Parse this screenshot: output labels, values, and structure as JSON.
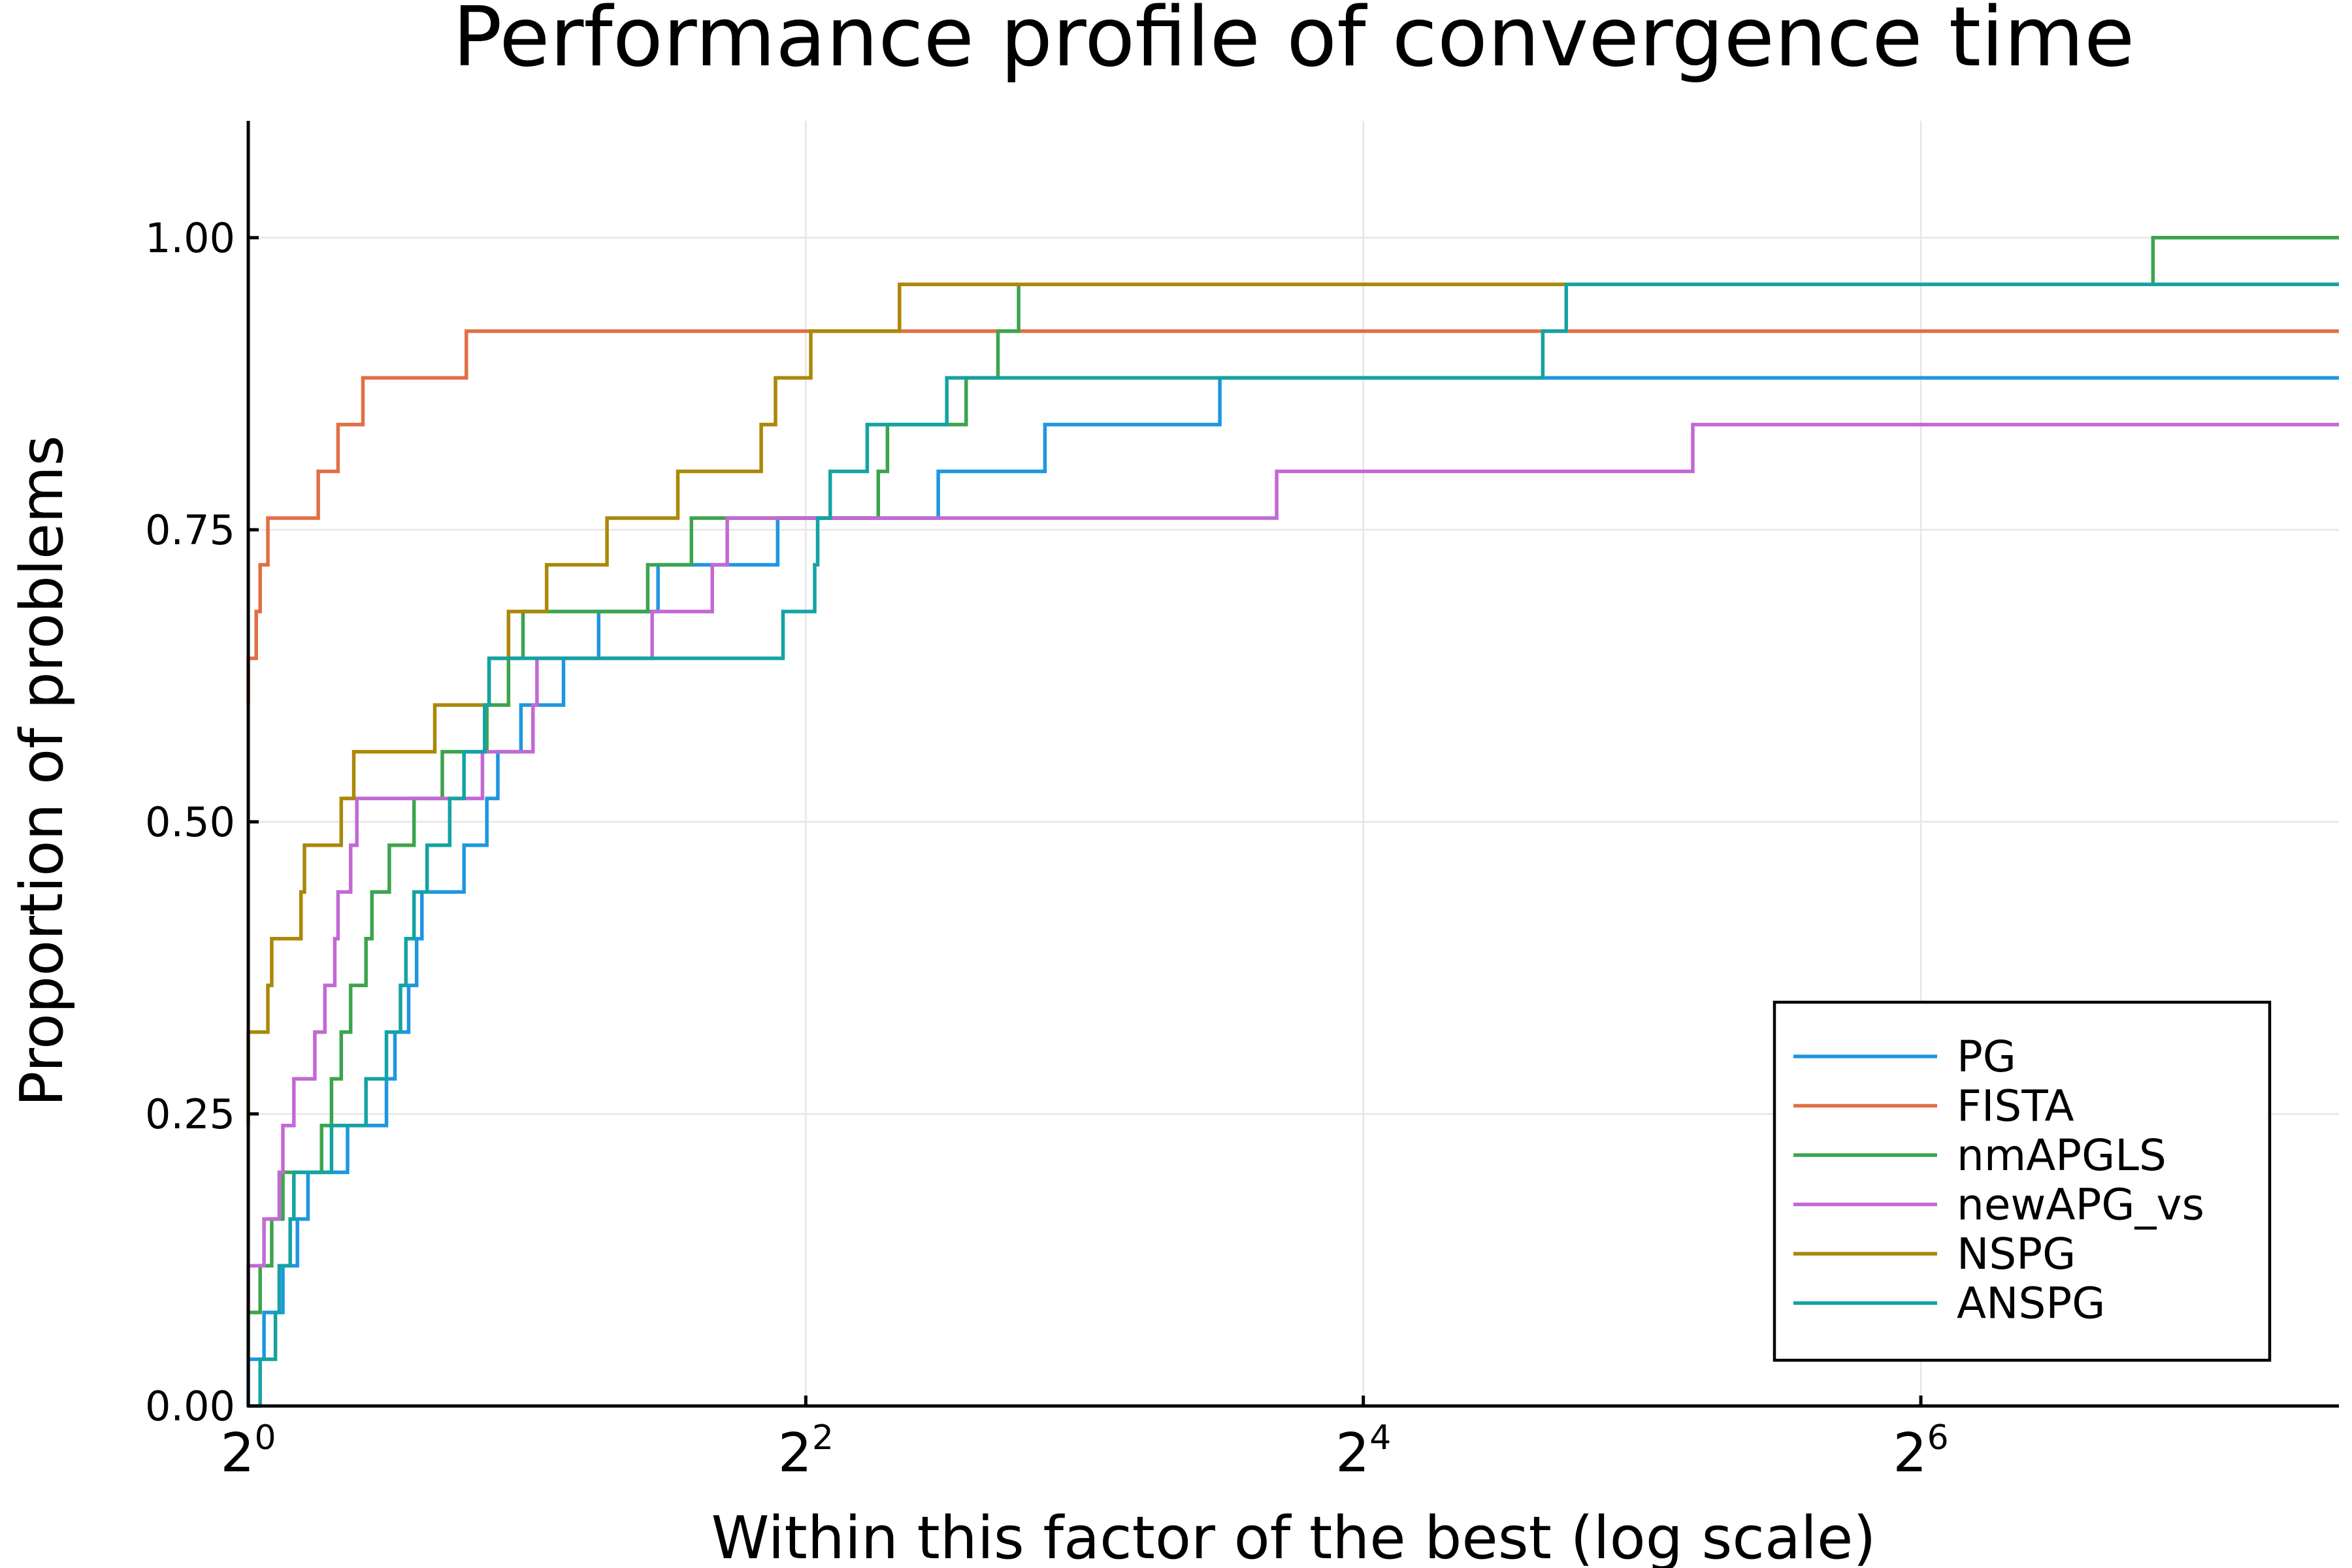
{
  "chart_data": {
    "type": "line",
    "step": true,
    "title": "Performance profile of convergence time",
    "xlabel": "Within this factor of the best (log scale)",
    "ylabel": "Proportion of problems",
    "x_scale": "log2",
    "xlim": [
      1,
      181
    ],
    "ylim": [
      0,
      1.1
    ],
    "grid": true,
    "legend_position": "bottom-right",
    "xticks": [
      {
        "value": 1,
        "base": "2",
        "exp": "0"
      },
      {
        "value": 4,
        "base": "2",
        "exp": "2"
      },
      {
        "value": 16,
        "base": "2",
        "exp": "4"
      },
      {
        "value": 64,
        "base": "2",
        "exp": "6"
      }
    ],
    "yticks": [
      {
        "value": 0,
        "label": "0.00"
      },
      {
        "value": 0.25,
        "label": "0.25"
      },
      {
        "value": 0.5,
        "label": "0.50"
      },
      {
        "value": 0.75,
        "label": "0.75"
      },
      {
        "value": 1.0,
        "label": "1.00"
      }
    ],
    "series": [
      {
        "name": "PG",
        "color": "#1f96e0",
        "points": [
          [
            1.0,
            0.0
          ],
          [
            1.0,
            0.04
          ],
          [
            1.04,
            0.04
          ],
          [
            1.04,
            0.08
          ],
          [
            1.09,
            0.08
          ],
          [
            1.09,
            0.12
          ],
          [
            1.13,
            0.12
          ],
          [
            1.13,
            0.16
          ],
          [
            1.16,
            0.16
          ],
          [
            1.16,
            0.2
          ],
          [
            1.28,
            0.2
          ],
          [
            1.28,
            0.24
          ],
          [
            1.41,
            0.24
          ],
          [
            1.41,
            0.28
          ],
          [
            1.44,
            0.28
          ],
          [
            1.44,
            0.32
          ],
          [
            1.49,
            0.32
          ],
          [
            1.49,
            0.36
          ],
          [
            1.52,
            0.36
          ],
          [
            1.52,
            0.4
          ],
          [
            1.54,
            0.4
          ],
          [
            1.54,
            0.44
          ],
          [
            1.71,
            0.44
          ],
          [
            1.71,
            0.48
          ],
          [
            1.81,
            0.48
          ],
          [
            1.81,
            0.52
          ],
          [
            1.86,
            0.52
          ],
          [
            1.86,
            0.56
          ],
          [
            1.97,
            0.56
          ],
          [
            1.97,
            0.6
          ],
          [
            2.19,
            0.6
          ],
          [
            2.19,
            0.64
          ],
          [
            2.39,
            0.64
          ],
          [
            2.39,
            0.68
          ],
          [
            2.77,
            0.68
          ],
          [
            2.77,
            0.72
          ],
          [
            3.73,
            0.72
          ],
          [
            3.73,
            0.76
          ],
          [
            5.56,
            0.76
          ],
          [
            5.56,
            0.8
          ],
          [
            7.25,
            0.8
          ],
          [
            7.25,
            0.84
          ],
          [
            11.2,
            0.84
          ],
          [
            11.2,
            0.88
          ],
          [
            181,
            0.88
          ]
        ]
      },
      {
        "name": "FISTA",
        "color": "#e26f46",
        "points": [
          [
            1.0,
            0.6
          ],
          [
            1.0,
            0.64
          ],
          [
            1.02,
            0.64
          ],
          [
            1.02,
            0.68
          ],
          [
            1.03,
            0.68
          ],
          [
            1.03,
            0.72
          ],
          [
            1.05,
            0.72
          ],
          [
            1.05,
            0.76
          ],
          [
            1.19,
            0.76
          ],
          [
            1.19,
            0.8
          ],
          [
            1.25,
            0.8
          ],
          [
            1.25,
            0.84
          ],
          [
            1.33,
            0.84
          ],
          [
            1.33,
            0.88
          ],
          [
            1.72,
            0.88
          ],
          [
            1.72,
            0.92
          ],
          [
            181,
            0.92
          ]
        ]
      },
      {
        "name": "nmAPGLS",
        "color": "#3da44d",
        "points": [
          [
            1.0,
            0.04
          ],
          [
            1.0,
            0.08
          ],
          [
            1.03,
            0.08
          ],
          [
            1.03,
            0.12
          ],
          [
            1.06,
            0.12
          ],
          [
            1.06,
            0.16
          ],
          [
            1.09,
            0.16
          ],
          [
            1.09,
            0.2
          ],
          [
            1.2,
            0.2
          ],
          [
            1.2,
            0.24
          ],
          [
            1.23,
            0.24
          ],
          [
            1.23,
            0.28
          ],
          [
            1.26,
            0.28
          ],
          [
            1.26,
            0.32
          ],
          [
            1.29,
            0.32
          ],
          [
            1.29,
            0.36
          ],
          [
            1.34,
            0.36
          ],
          [
            1.34,
            0.4
          ],
          [
            1.36,
            0.4
          ],
          [
            1.36,
            0.44
          ],
          [
            1.42,
            0.44
          ],
          [
            1.42,
            0.48
          ],
          [
            1.51,
            0.48
          ],
          [
            1.51,
            0.52
          ],
          [
            1.62,
            0.52
          ],
          [
            1.62,
            0.56
          ],
          [
            1.81,
            0.56
          ],
          [
            1.81,
            0.6
          ],
          [
            1.91,
            0.6
          ],
          [
            1.91,
            0.64
          ],
          [
            1.98,
            0.64
          ],
          [
            1.98,
            0.68
          ],
          [
            2.7,
            0.68
          ],
          [
            2.7,
            0.72
          ],
          [
            3.01,
            0.72
          ],
          [
            3.01,
            0.76
          ],
          [
            4.79,
            0.76
          ],
          [
            4.79,
            0.8
          ],
          [
            4.9,
            0.8
          ],
          [
            4.9,
            0.84
          ],
          [
            5.96,
            0.84
          ],
          [
            5.96,
            0.88
          ],
          [
            6.45,
            0.88
          ],
          [
            6.45,
            0.92
          ],
          [
            6.79,
            0.92
          ],
          [
            6.79,
            0.96
          ],
          [
            114,
            0.96
          ],
          [
            114,
            1.0
          ],
          [
            181,
            1.0
          ]
        ]
      },
      {
        "name": "newAPG_vs",
        "color": "#c269d4",
        "points": [
          [
            1.0,
            0.08
          ],
          [
            1.0,
            0.12
          ],
          [
            1.04,
            0.12
          ],
          [
            1.04,
            0.16
          ],
          [
            1.08,
            0.16
          ],
          [
            1.08,
            0.2
          ],
          [
            1.09,
            0.2
          ],
          [
            1.09,
            0.24
          ],
          [
            1.12,
            0.24
          ],
          [
            1.12,
            0.28
          ],
          [
            1.18,
            0.28
          ],
          [
            1.18,
            0.32
          ],
          [
            1.21,
            0.32
          ],
          [
            1.21,
            0.36
          ],
          [
            1.24,
            0.36
          ],
          [
            1.24,
            0.4
          ],
          [
            1.25,
            0.4
          ],
          [
            1.25,
            0.44
          ],
          [
            1.29,
            0.44
          ],
          [
            1.29,
            0.48
          ],
          [
            1.31,
            0.48
          ],
          [
            1.31,
            0.52
          ],
          [
            1.79,
            0.52
          ],
          [
            1.79,
            0.56
          ],
          [
            2.03,
            0.56
          ],
          [
            2.03,
            0.6
          ],
          [
            2.05,
            0.6
          ],
          [
            2.05,
            0.64
          ],
          [
            2.73,
            0.64
          ],
          [
            2.73,
            0.68
          ],
          [
            3.17,
            0.68
          ],
          [
            3.17,
            0.72
          ],
          [
            3.29,
            0.72
          ],
          [
            3.29,
            0.76
          ],
          [
            12.9,
            0.76
          ],
          [
            12.9,
            0.8
          ],
          [
            36.3,
            0.8
          ],
          [
            36.3,
            0.84
          ],
          [
            181,
            0.84
          ]
        ]
      },
      {
        "name": "NSPG",
        "color": "#aa8808",
        "points": [
          [
            1.0,
            0.24
          ],
          [
            1.0,
            0.32
          ],
          [
            1.05,
            0.32
          ],
          [
            1.05,
            0.36
          ],
          [
            1.06,
            0.36
          ],
          [
            1.06,
            0.4
          ],
          [
            1.14,
            0.4
          ],
          [
            1.14,
            0.44
          ],
          [
            1.15,
            0.44
          ],
          [
            1.15,
            0.48
          ],
          [
            1.26,
            0.48
          ],
          [
            1.26,
            0.52
          ],
          [
            1.3,
            0.52
          ],
          [
            1.3,
            0.56
          ],
          [
            1.59,
            0.56
          ],
          [
            1.59,
            0.6
          ],
          [
            1.82,
            0.6
          ],
          [
            1.82,
            0.64
          ],
          [
            1.91,
            0.64
          ],
          [
            1.91,
            0.68
          ],
          [
            2.1,
            0.68
          ],
          [
            2.1,
            0.72
          ],
          [
            2.44,
            0.72
          ],
          [
            2.44,
            0.76
          ],
          [
            2.91,
            0.76
          ],
          [
            2.91,
            0.8
          ],
          [
            3.58,
            0.8
          ],
          [
            3.58,
            0.84
          ],
          [
            3.71,
            0.84
          ],
          [
            3.71,
            0.88
          ],
          [
            4.05,
            0.88
          ],
          [
            4.05,
            0.92
          ],
          [
            5.05,
            0.92
          ],
          [
            5.05,
            0.96
          ],
          [
            181,
            0.96
          ]
        ]
      },
      {
        "name": "ANSPG",
        "color": "#14a3a4",
        "points": [
          [
            1.0,
            0.0
          ],
          [
            1.03,
            0.0
          ],
          [
            1.03,
            0.04
          ],
          [
            1.07,
            0.04
          ],
          [
            1.07,
            0.08
          ],
          [
            1.08,
            0.08
          ],
          [
            1.08,
            0.12
          ],
          [
            1.11,
            0.12
          ],
          [
            1.11,
            0.16
          ],
          [
            1.12,
            0.16
          ],
          [
            1.12,
            0.2
          ],
          [
            1.23,
            0.2
          ],
          [
            1.23,
            0.24
          ],
          [
            1.34,
            0.24
          ],
          [
            1.34,
            0.28
          ],
          [
            1.41,
            0.28
          ],
          [
            1.41,
            0.32
          ],
          [
            1.46,
            0.32
          ],
          [
            1.46,
            0.36
          ],
          [
            1.48,
            0.36
          ],
          [
            1.48,
            0.4
          ],
          [
            1.51,
            0.4
          ],
          [
            1.51,
            0.44
          ],
          [
            1.56,
            0.44
          ],
          [
            1.56,
            0.48
          ],
          [
            1.65,
            0.48
          ],
          [
            1.65,
            0.52
          ],
          [
            1.71,
            0.52
          ],
          [
            1.71,
            0.56
          ],
          [
            1.8,
            0.56
          ],
          [
            1.8,
            0.6
          ],
          [
            1.82,
            0.6
          ],
          [
            1.82,
            0.64
          ],
          [
            3.78,
            0.64
          ],
          [
            3.78,
            0.68
          ],
          [
            4.09,
            0.68
          ],
          [
            4.09,
            0.72
          ],
          [
            4.12,
            0.72
          ],
          [
            4.12,
            0.76
          ],
          [
            4.25,
            0.76
          ],
          [
            4.25,
            0.8
          ],
          [
            4.66,
            0.8
          ],
          [
            4.66,
            0.84
          ],
          [
            5.68,
            0.84
          ],
          [
            5.68,
            0.88
          ],
          [
            25.0,
            0.88
          ],
          [
            25.0,
            0.92
          ],
          [
            26.5,
            0.92
          ],
          [
            26.5,
            0.96
          ],
          [
            181,
            0.96
          ]
        ]
      }
    ]
  }
}
